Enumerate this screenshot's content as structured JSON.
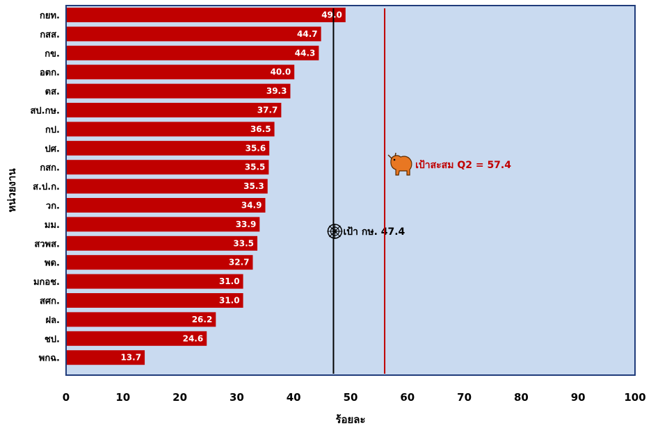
{
  "chart_data": {
    "type": "bar",
    "orientation": "horizontal",
    "categories": [
      "กยท.",
      "กสส.",
      "กข.",
      "อตก.",
      "ตส.",
      "สป.กษ.",
      "กป.",
      "ปศ.",
      "กสก.",
      "ส.ป.ก.",
      "วก.",
      "มม.",
      "สวพส.",
      "พด.",
      "มกอช.",
      "สศก.",
      "ฝล.",
      "ชป.",
      "พกฉ."
    ],
    "values": [
      49.0,
      44.7,
      44.3,
      40.0,
      39.3,
      37.7,
      36.5,
      35.6,
      35.5,
      35.3,
      34.9,
      33.9,
      33.5,
      32.7,
      31.0,
      31.0,
      26.2,
      24.6,
      13.7
    ],
    "value_labels": [
      "49.0",
      "44.7",
      "44.3",
      "40.0",
      "39.3",
      "37.7",
      "36.5",
      "35.6",
      "35.5",
      "35.3",
      "34.9",
      "33.9",
      "33.5",
      "32.7",
      "31.0",
      "31.0",
      "26.2",
      "24.6",
      "13.7"
    ],
    "xlabel": "ร้อยละ",
    "ylabel": "หน่วยงาน",
    "xlim": [
      0,
      100
    ],
    "xticks": [
      "0",
      "10",
      "20",
      "30",
      "40",
      "50",
      "60",
      "70",
      "80",
      "90",
      "100"
    ],
    "grid": false,
    "reference_lines": [
      {
        "label": "เป้า กษ. 47.4",
        "value": 47,
        "color": "#000000",
        "icon": "spider-web-icon"
      },
      {
        "label": "เป้าสะสม Q2  = 57.4",
        "value": 56,
        "color": "#c00000",
        "icon": "ox-icon"
      }
    ]
  },
  "colors": {
    "bar": "#c00000",
    "plot_background": "#c9daf0",
    "plot_border": "#1f3b7a"
  }
}
